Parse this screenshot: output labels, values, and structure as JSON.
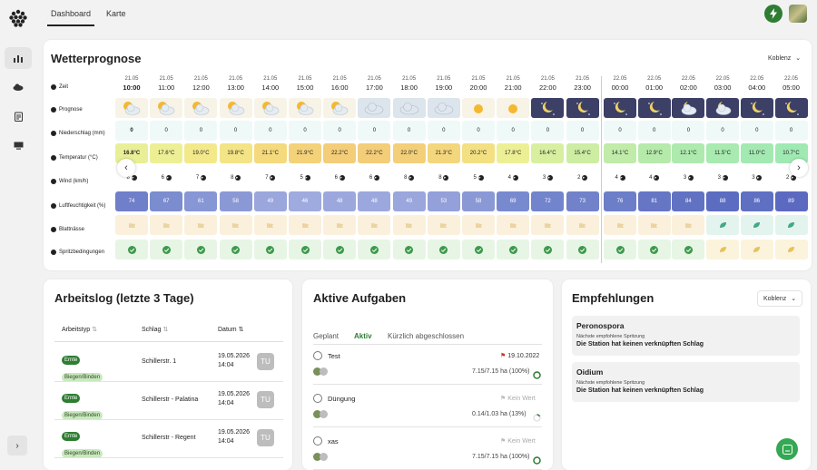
{
  "nav": {
    "tabs": [
      "Dashboard",
      "Karte"
    ],
    "side_icons": [
      "bar-chart-icon",
      "cloud-icon",
      "clipboard-icon",
      "monitor-icon"
    ]
  },
  "weather": {
    "title": "Wetterprognose",
    "location": "Koblenz",
    "row_labels": [
      "Zeit",
      "Prognose",
      "Niederschlag (mm)",
      "Temperatur (°C)",
      "Wind (km/h)",
      "Luftfeuchtigkeit (%)",
      "Blattnässe",
      "Spritzbedingungen"
    ],
    "columns": [
      {
        "date": "21.05",
        "time": "10:00",
        "icon": "partly-sunny",
        "rain": "0",
        "temp": "16.8°C",
        "tc": "#e9ef96",
        "wind": "8",
        "hum": "74",
        "hc": "#6f7fc9",
        "leaf": "flag",
        "spray": "check"
      },
      {
        "date": "21.05",
        "time": "11:00",
        "icon": "partly-sunny",
        "rain": "0",
        "temp": "17.6°C",
        "tc": "#edef95",
        "wind": "6",
        "hum": "67",
        "hc": "#7b8ccf",
        "leaf": "flag",
        "spray": "check"
      },
      {
        "date": "21.05",
        "time": "12:00",
        "icon": "partly-sunny",
        "rain": "0",
        "temp": "19.0°C",
        "tc": "#f3e98b",
        "wind": "7",
        "hum": "61",
        "hc": "#8796d4",
        "leaf": "flag",
        "spray": "check"
      },
      {
        "date": "21.05",
        "time": "13:00",
        "icon": "partly-sunny",
        "rain": "0",
        "temp": "19.8°C",
        "tc": "#f3e486",
        "wind": "8",
        "hum": "58",
        "hc": "#8a99d6",
        "leaf": "flag",
        "spray": "check"
      },
      {
        "date": "21.05",
        "time": "14:00",
        "icon": "partly-sunny",
        "rain": "0",
        "temp": "21.1°C",
        "tc": "#f5d97d",
        "wind": "7",
        "hum": "49",
        "hc": "#9aa6dc",
        "leaf": "flag",
        "spray": "check"
      },
      {
        "date": "21.05",
        "time": "15:00",
        "icon": "partly-sunny",
        "rain": "0",
        "temp": "21.9°C",
        "tc": "#f4d27a",
        "wind": "5",
        "hum": "46",
        "hc": "#9faade",
        "leaf": "flag",
        "spray": "check"
      },
      {
        "date": "21.05",
        "time": "16:00",
        "icon": "partly-sunny",
        "rain": "0",
        "temp": "22.2°C",
        "tc": "#f3cd78",
        "wind": "6",
        "hum": "48",
        "hc": "#9ca8dd",
        "leaf": "flag",
        "spray": "check"
      },
      {
        "date": "21.05",
        "time": "17:00",
        "icon": "cloudy",
        "rain": "0",
        "temp": "22.2°C",
        "tc": "#f3cd78",
        "wind": "6",
        "hum": "48",
        "hc": "#9ca8dd",
        "leaf": "flag",
        "spray": "check"
      },
      {
        "date": "21.05",
        "time": "18:00",
        "icon": "cloudy",
        "rain": "0",
        "temp": "22.0°C",
        "tc": "#f3cf79",
        "wind": "8",
        "hum": "49",
        "hc": "#9aa6dc",
        "leaf": "flag",
        "spray": "check"
      },
      {
        "date": "21.05",
        "time": "19:00",
        "icon": "cloudy",
        "rain": "0",
        "temp": "21.3°C",
        "tc": "#f4d67c",
        "wind": "8",
        "hum": "53",
        "hc": "#93a0d9",
        "leaf": "flag",
        "spray": "check"
      },
      {
        "date": "21.05",
        "time": "20:00",
        "icon": "sunny",
        "rain": "0",
        "temp": "20.2°C",
        "tc": "#f3e083",
        "wind": "5",
        "hum": "58",
        "hc": "#8a99d6",
        "leaf": "flag",
        "spray": "check"
      },
      {
        "date": "21.05",
        "time": "21:00",
        "icon": "sunny",
        "rain": "0",
        "temp": "17.8°C",
        "tc": "#edef95",
        "wind": "4",
        "hum": "69",
        "hc": "#788acf",
        "leaf": "flag",
        "spray": "check"
      },
      {
        "date": "21.05",
        "time": "22:00",
        "icon": "night",
        "rain": "0",
        "temp": "16.4°C",
        "tc": "#d8efa0",
        "wind": "3",
        "hum": "72",
        "hc": "#7284cb",
        "leaf": "flag",
        "spray": "check"
      },
      {
        "date": "21.05",
        "time": "23:00",
        "icon": "night",
        "rain": "0",
        "temp": "15.4°C",
        "tc": "#cdeda3",
        "wind": "2",
        "hum": "73",
        "hc": "#7182ca",
        "leaf": "flag",
        "spray": "check"
      },
      {
        "date": "22.05",
        "time": "00:00",
        "icon": "night",
        "rain": "0",
        "temp": "14.1°C",
        "tc": "#c0eba8",
        "wind": "4",
        "hum": "76",
        "hc": "#6d7ec8",
        "leaf": "flag",
        "spray": "check"
      },
      {
        "date": "22.05",
        "time": "01:00",
        "icon": "night",
        "rain": "0",
        "temp": "12.9°C",
        "tc": "#b6eaab",
        "wind": "4",
        "hum": "81",
        "hc": "#6676c5",
        "leaf": "flag",
        "spray": "check"
      },
      {
        "date": "22.05",
        "time": "02:00",
        "icon": "night-cloudy",
        "rain": "0",
        "temp": "12.1°C",
        "tc": "#aeeaae",
        "wind": "3",
        "hum": "84",
        "hc": "#6272c3",
        "leaf": "flag",
        "spray": "check"
      },
      {
        "date": "22.05",
        "time": "03:00",
        "icon": "night-cloudy",
        "rain": "0",
        "temp": "11.5°C",
        "tc": "#a8eab0",
        "wind": "3",
        "hum": "88",
        "hc": "#5c6cc1",
        "leaf": "leaf",
        "spray": "leaf"
      },
      {
        "date": "22.05",
        "time": "04:00",
        "icon": "night",
        "rain": "0",
        "temp": "11.0°C",
        "tc": "#a3e9b2",
        "wind": "3",
        "hum": "86",
        "hc": "#5f6fc2",
        "leaf": "leaf",
        "spray": "leaf"
      },
      {
        "date": "22.05",
        "time": "05:00",
        "icon": "night",
        "rain": "0",
        "temp": "10.7°C",
        "tc": "#a0e9b3",
        "wind": "2",
        "hum": "89",
        "hc": "#5b6ac0",
        "leaf": "leaf",
        "spray": "leaf"
      }
    ]
  },
  "worklog": {
    "title": "Arbeitslog (letzte 3 Tage)",
    "headers": [
      "Arbeitstyp",
      "Schlag",
      "Datum"
    ],
    "rows": [
      {
        "badge1": "Ernte",
        "badge2": "Biegen/Binden",
        "field": "Schillerstr. 1",
        "date": "19.05.2026",
        "time": "14:04",
        "user": "TU"
      },
      {
        "badge1": "Ernte",
        "badge2": "Biegen/Binden",
        "field": "Schillerstr - Palatina",
        "date": "19.05.2026",
        "time": "14:04",
        "user": "TU"
      },
      {
        "badge1": "Ernte",
        "badge2": "Biegen/Binden",
        "field": "Schillerstr - Regent",
        "date": "19.05.2026",
        "time": "14:04",
        "user": "TU"
      }
    ]
  },
  "tasks": {
    "title": "Aktive Aufgaben",
    "tabs": [
      "Geplant",
      "Aktiv",
      "Kürzlich abgeschlossen"
    ],
    "items": [
      {
        "name": "Test",
        "date": "19.10.2022",
        "progress": "7.15/7.15 ha (100%)"
      },
      {
        "name": "Düngung",
        "date": "Kein Wert",
        "progress": "0.14/1.03 ha (13%)"
      },
      {
        "name": "xas",
        "date": "Kein Wert",
        "progress": "7.15/7.15 ha (100%)"
      }
    ]
  },
  "recommendations": {
    "title": "Empfehlungen",
    "location": "Koblenz",
    "items": [
      {
        "name": "Peronospora",
        "sub": "Nächste empfohlene Spritzung",
        "msg": "Die Station hat keinen verknüpften Schlag"
      },
      {
        "name": "Oidium",
        "sub": "Nächste empfohlene Spritzung",
        "msg": "Die Station hat keinen verknüpften Schlag"
      }
    ]
  },
  "colors": {
    "accent": "#2e7d32",
    "tab_active": "#2e7d32"
  }
}
